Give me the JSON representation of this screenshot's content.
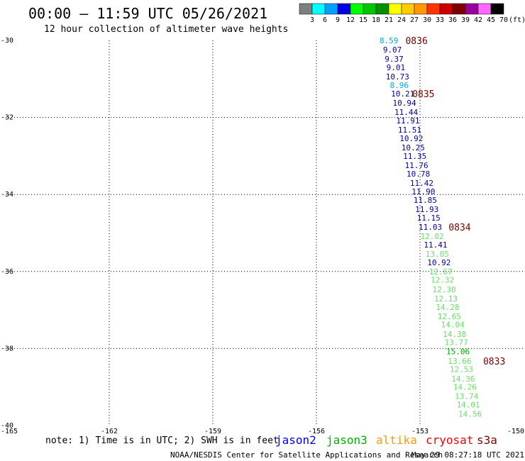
{
  "header": {
    "title": "00:00 – 11:59 UTC 05/26/2021",
    "subtitle": "12 hour collection of altimeter wave heights"
  },
  "color_scale": {
    "labels": [
      "3",
      "6",
      "9",
      "12",
      "15",
      "18",
      "21",
      "24",
      "27",
      "30",
      "33",
      "36",
      "39",
      "42",
      "45",
      "70"
    ],
    "unit": "(ft)",
    "colors": [
      "#7f7f7f",
      "#00ffff",
      "#00a0ff",
      "#0000e0",
      "#00ff00",
      "#00c800",
      "#009000",
      "#ffff00",
      "#ffcc00",
      "#ff9900",
      "#ff3300",
      "#cc0000",
      "#800000",
      "#990099",
      "#ff66ff",
      "#000000"
    ]
  },
  "footer": {
    "note": "note: 1) Time is in UTC; 2) SWH is in feet",
    "satellites": [
      {
        "name": "jason2",
        "color": "#0000ff"
      },
      {
        "name": "jason3",
        "color": "#00b000"
      },
      {
        "name": "altika",
        "color": "#ff9900"
      },
      {
        "name": "cryosat",
        "color": "#ff0000"
      },
      {
        "name": "s3a",
        "color": "#800000"
      }
    ],
    "credit": "NOAA/NESDIS Center for Satellite Applications and Research",
    "timestamp": "May 29 08:27:18 UTC 2021"
  },
  "chart_data": {
    "type": "scatter",
    "title": "00:00 – 11:59 UTC 05/26/2021",
    "subtitle": "12 hour collection of altimeter wave heights",
    "xlim": [
      -165,
      -150
    ],
    "ylim": [
      -40,
      -30
    ],
    "x_ticks": [
      "-165",
      "-162",
      "-159",
      "-156",
      "-153",
      "-150"
    ],
    "y_ticks": [
      "-30",
      "-32",
      "-34",
      "-36",
      "-38",
      "-40"
    ],
    "grid": true,
    "legend": "bottom",
    "points": [
      {
        "lon": -153.9,
        "lat": -30.0,
        "swh": "8.59",
        "color": "#00a8e8"
      },
      {
        "lon": -153.8,
        "lat": -30.24,
        "swh": "9.07",
        "color": "#0000aa"
      },
      {
        "lon": -153.75,
        "lat": -30.48,
        "swh": "9.37",
        "color": "#0000aa"
      },
      {
        "lon": -153.7,
        "lat": -30.7,
        "swh": "9.01",
        "color": "#0000aa"
      },
      {
        "lon": -153.65,
        "lat": -30.94,
        "swh": "10.73",
        "color": "#0000aa"
      },
      {
        "lon": -153.6,
        "lat": -31.16,
        "swh": "8.96",
        "color": "#00a8e8"
      },
      {
        "lon": -153.5,
        "lat": -31.38,
        "swh": "10.21",
        "color": "#0000aa"
      },
      {
        "lon": -153.45,
        "lat": -31.62,
        "swh": "10.94",
        "color": "#0000aa"
      },
      {
        "lon": -153.4,
        "lat": -31.86,
        "swh": "11.44",
        "color": "#0000aa"
      },
      {
        "lon": -153.35,
        "lat": -32.08,
        "swh": "11.91",
        "color": "#0000aa"
      },
      {
        "lon": -153.3,
        "lat": -32.32,
        "swh": "11.51",
        "color": "#0000aa"
      },
      {
        "lon": -153.25,
        "lat": -32.54,
        "swh": "10.92",
        "color": "#0000aa"
      },
      {
        "lon": -153.2,
        "lat": -32.78,
        "swh": "10.25",
        "color": "#0000aa"
      },
      {
        "lon": -153.15,
        "lat": -33.0,
        "swh": "11.35",
        "color": "#0000aa"
      },
      {
        "lon": -153.1,
        "lat": -33.24,
        "swh": "11.76",
        "color": "#0000aa"
      },
      {
        "lon": -153.05,
        "lat": -33.46,
        "swh": "10.78",
        "color": "#0000aa"
      },
      {
        "lon": -152.95,
        "lat": -33.7,
        "swh": "11.42",
        "color": "#0000aa"
      },
      {
        "lon": -152.9,
        "lat": -33.92,
        "swh": "11.90",
        "color": "#0000aa"
      },
      {
        "lon": -152.85,
        "lat": -34.14,
        "swh": "11.85",
        "color": "#0000aa"
      },
      {
        "lon": -152.8,
        "lat": -34.38,
        "swh": "11.93",
        "color": "#0000aa"
      },
      {
        "lon": -152.75,
        "lat": -34.6,
        "swh": "11.15",
        "color": "#0000aa"
      },
      {
        "lon": -152.7,
        "lat": -34.84,
        "swh": "11.03",
        "color": "#0000aa"
      },
      {
        "lon": -152.65,
        "lat": -35.08,
        "swh": "12.02",
        "color": "#66e066"
      },
      {
        "lon": -152.55,
        "lat": -35.3,
        "swh": "11.41",
        "color": "#0000aa"
      },
      {
        "lon": -152.5,
        "lat": -35.54,
        "swh": "13.05",
        "color": "#66e066"
      },
      {
        "lon": -152.45,
        "lat": -35.76,
        "swh": "10.92",
        "color": "#0000aa"
      },
      {
        "lon": -152.4,
        "lat": -36.0,
        "swh": "12.67",
        "color": "#66e066"
      },
      {
        "lon": -152.35,
        "lat": -36.22,
        "swh": "12.32",
        "color": "#66e066"
      },
      {
        "lon": -152.3,
        "lat": -36.46,
        "swh": "12.30",
        "color": "#66e066"
      },
      {
        "lon": -152.25,
        "lat": -36.7,
        "swh": "12.13",
        "color": "#66e066"
      },
      {
        "lon": -152.2,
        "lat": -36.92,
        "swh": "14.28",
        "color": "#66e066"
      },
      {
        "lon": -152.15,
        "lat": -37.16,
        "swh": "12.65",
        "color": "#66e066"
      },
      {
        "lon": -152.05,
        "lat": -37.38,
        "swh": "14.04",
        "color": "#66e066"
      },
      {
        "lon": -152.0,
        "lat": -37.62,
        "swh": "14.38",
        "color": "#66e066"
      },
      {
        "lon": -151.95,
        "lat": -37.84,
        "swh": "13.77",
        "color": "#66e066"
      },
      {
        "lon": -151.9,
        "lat": -38.08,
        "swh": "15.06",
        "color": "#00b000"
      },
      {
        "lon": -151.85,
        "lat": -38.32,
        "swh": "13.66",
        "color": "#66e066"
      },
      {
        "lon": -151.8,
        "lat": -38.54,
        "swh": "12.53",
        "color": "#66e066"
      },
      {
        "lon": -151.75,
        "lat": -38.78,
        "swh": "14.36",
        "color": "#66e066"
      },
      {
        "lon": -151.7,
        "lat": -39.0,
        "swh": "14.26",
        "color": "#66e066"
      },
      {
        "lon": -151.65,
        "lat": -39.24,
        "swh": "13.74",
        "color": "#66e066"
      },
      {
        "lon": -151.6,
        "lat": -39.46,
        "swh": "14.01",
        "color": "#66e066"
      },
      {
        "lon": -151.55,
        "lat": -39.7,
        "swh": "14.56",
        "color": "#66e066"
      }
    ],
    "time_labels": [
      {
        "lon": -153.1,
        "lat": -30.0,
        "text": "0836"
      },
      {
        "lon": -152.9,
        "lat": -31.38,
        "text": "0835"
      },
      {
        "lon": -151.85,
        "lat": -34.84,
        "text": "0834"
      },
      {
        "lon": -150.85,
        "lat": -38.32,
        "text": "0833"
      }
    ]
  }
}
